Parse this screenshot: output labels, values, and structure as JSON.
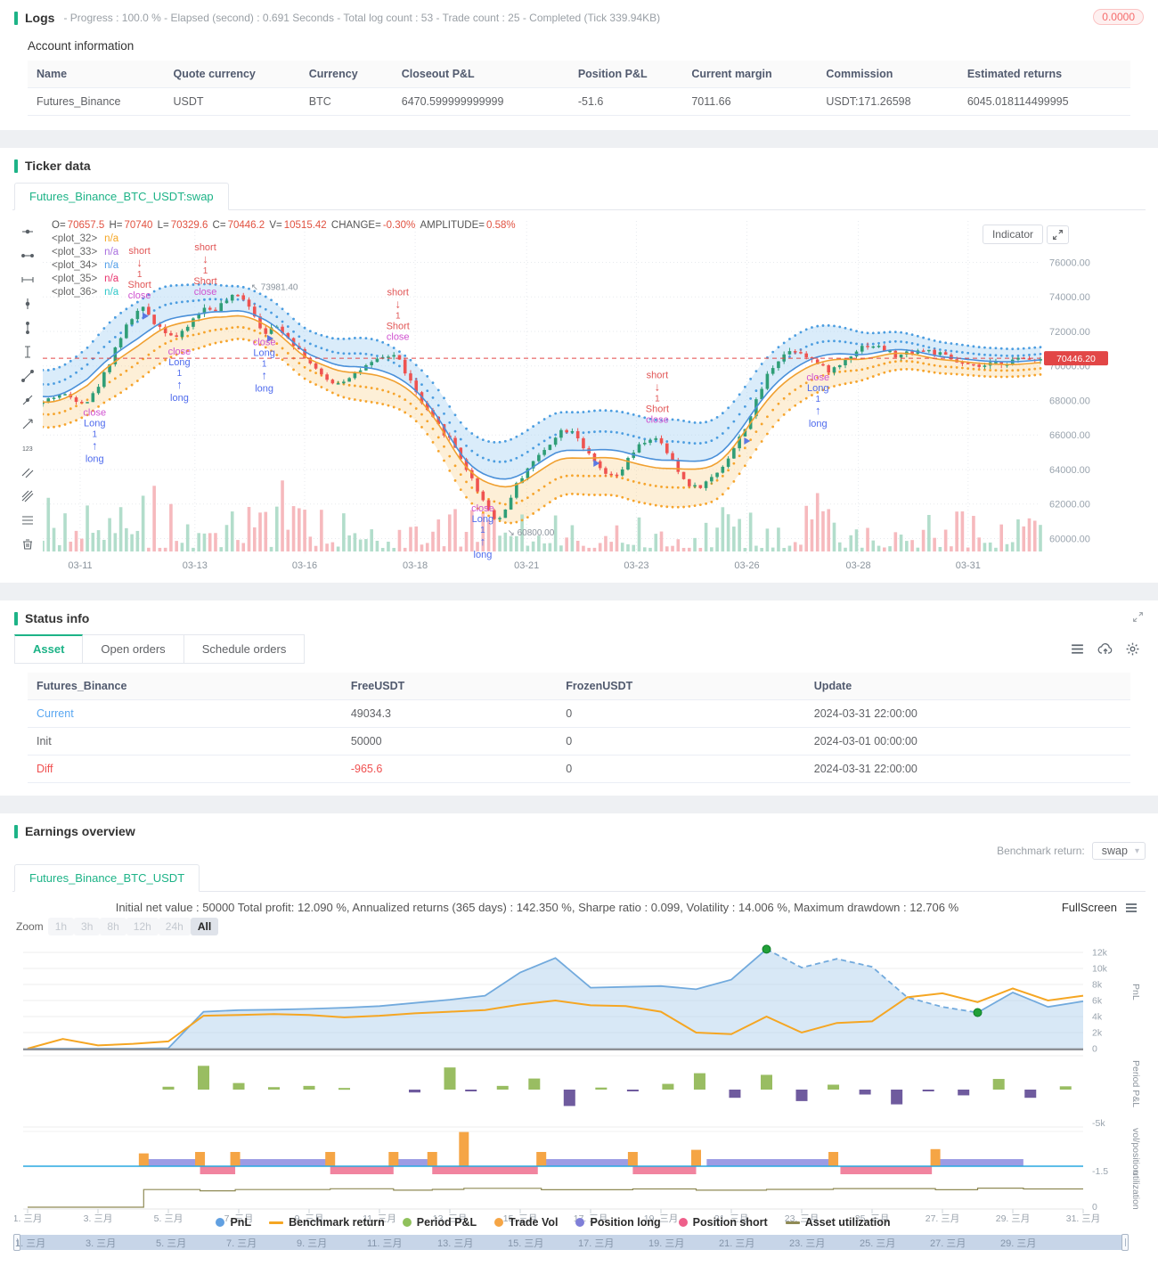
{
  "colors": {
    "accent_green": "#1db387",
    "candle_up": "#2f9e77",
    "candle_down": "#ef5350",
    "band_blue": "#4b9de0",
    "band_orange": "#f6a42c",
    "last_price_red": "#e24646",
    "pnl_blue": "#72aadd",
    "benchmark_orange": "#f5a623",
    "period_green": "#99bd62",
    "period_purple": "#6f5b9e",
    "vol_orange": "#f5a545",
    "long_purple": "#8b8bdf",
    "short_pink": "#ef6f8e",
    "util_olive": "#8f8a55"
  },
  "logs": {
    "title": "Logs",
    "meta": "- Progress : 100.0 % - Elapsed (second) : 0.691 Seconds - Total log count : 53 - Trade count : 25 - Completed (Tick 339.94KB)",
    "badge": "0.0000",
    "account_title": "Account information",
    "headers": [
      "Name",
      "Quote currency",
      "Currency",
      "Closeout P&L",
      "Position P&L",
      "Current margin",
      "Commission",
      "Estimated returns"
    ],
    "row": [
      "Futures_Binance",
      "USDT",
      "BTC",
      "6470.599999999999",
      "-51.6",
      "7011.66",
      "USDT:171.26598",
      "6045.018114499995"
    ]
  },
  "ticker": {
    "title": "Ticker data",
    "tab_label": "Futures_Binance_BTC_USDT:swap",
    "indicator_button": "Indicator",
    "ohlc": [
      [
        "O=",
        "70657.5"
      ],
      [
        "H=",
        "70740"
      ],
      [
        "L=",
        "70329.6"
      ],
      [
        "C=",
        "70446.2"
      ],
      [
        "V=",
        "10515.42"
      ],
      [
        "CHANGE=",
        "-0.30%"
      ],
      [
        "AMPLITUDE=",
        "0.58%"
      ]
    ],
    "plots": [
      {
        "name": "<plot_32>",
        "value": "n/a",
        "color": "#f5a623"
      },
      {
        "name": "<plot_33>",
        "value": "n/a",
        "color": "#a86ede"
      },
      {
        "name": "<plot_34>",
        "value": "n/a",
        "color": "#4f9de8"
      },
      {
        "name": "<plot_35>",
        "value": "n/a",
        "color": "#e8336d"
      },
      {
        "name": "<plot_36>",
        "value": "n/a",
        "color": "#2ec7c9"
      }
    ],
    "toolbar_icons": [
      "horizontal-line-tool-icon",
      "horizontal-segment-tool-icon",
      "horizontal-ray-tool-icon",
      "vertical-line-tool-icon",
      "vertical-segment-tool-icon",
      "vertical-ray-tool-icon",
      "trend-line-tool-icon",
      "ray-tool-icon",
      "arrow-line-tool-icon",
      "price-label-tool-icon",
      "parallel-channel-tool-icon",
      "fib-fan-tool-icon",
      "fib-retracement-tool-icon",
      "delete-drawings-tool-icon"
    ]
  },
  "status": {
    "title": "Status info",
    "tabs": [
      "Asset",
      "Open orders",
      "Schedule orders"
    ],
    "active_tab": "Asset",
    "headers": [
      "Futures_Binance",
      "FreeUSDT",
      "FrozenUSDT",
      "Update"
    ],
    "rows": [
      {
        "label": "Current",
        "free": "49034.3",
        "frozen": "0",
        "update": "2024-03-31 22:00:00"
      },
      {
        "label": "Init",
        "free": "50000",
        "frozen": "0",
        "update": "2024-03-01 00:00:00"
      },
      {
        "label": "Diff",
        "free": "-965.6",
        "frozen": "0",
        "update": "2024-03-31 22:00:00"
      }
    ]
  },
  "earnings": {
    "title": "Earnings overview",
    "tab_label": "Futures_Binance_BTC_USDT",
    "benchmark_label": "Benchmark return:",
    "benchmark_value": "swap",
    "stats": "Initial net value : 50000 Total profit: 12.090 %, Annualized returns (365 days) : 142.350 %, Sharpe ratio : 0.099, Volatility : 14.006 %, Maximum drawdown : 12.706 %",
    "fullscreen_label": "FullScreen",
    "zoom_label": "Zoom",
    "zoom_options": [
      "1h",
      "3h",
      "8h",
      "12h",
      "24h",
      "All"
    ],
    "zoom_active": "All",
    "pnl_ticks": [
      "0",
      "2k",
      "4k",
      "6k",
      "8k",
      "10k",
      "12k"
    ],
    "axis_titles": {
      "pnl": "PnL",
      "period": "Period P&L",
      "volpos": "vol/position",
      "util": "utilization"
    },
    "period_min": "-5k",
    "volpos_min": "-1.5",
    "util_min": "0",
    "x_days": [
      1,
      3,
      5,
      7,
      9,
      11,
      13,
      15,
      17,
      19,
      21,
      23,
      25,
      27,
      29,
      31
    ],
    "x_labels": [
      "1. 三月",
      "3. 三月",
      "5. 三月",
      "7. 三月",
      "9. 三月",
      "11. 三月",
      "13. 三月",
      "15. 三月",
      "17. 三月",
      "19. 三月",
      "21. 三月",
      "23. 三月",
      "25. 三月",
      "27. 三月",
      "29. 三月",
      "31. 三月"
    ],
    "nav_days": [
      1,
      3,
      5,
      7,
      9,
      11,
      13,
      15,
      17,
      19,
      21,
      23,
      25,
      27,
      29
    ],
    "nav_labels": [
      "1. 三月",
      "3. 三月",
      "5. 三月",
      "7. 三月",
      "9. 三月",
      "11. 三月",
      "13. 三月",
      "15. 三月",
      "17. 三月",
      "19. 三月",
      "21. 三月",
      "23. 三月",
      "25. 三月",
      "27. 三月",
      "29. 三月"
    ],
    "legend": [
      {
        "label": "PnL",
        "color": "#61a0e1",
        "shape": "dot"
      },
      {
        "label": "Benchmark return",
        "color": "#f5a623",
        "shape": "line"
      },
      {
        "label": "Period P&L",
        "color": "#90c15c",
        "shape": "dot"
      },
      {
        "label": "Trade Vol",
        "color": "#f5a545",
        "shape": "dot"
      },
      {
        "label": "Position long",
        "color": "#7f7fd8",
        "shape": "dot"
      },
      {
        "label": "Position short",
        "color": "#ee5f8a",
        "shape": "dot"
      },
      {
        "label": "Asset utilization",
        "color": "#8f8a55",
        "shape": "line"
      }
    ]
  },
  "chart_data": [
    {
      "type": "candlestick",
      "title": "Futures_Binance_BTC_USDT:swap",
      "y_ticks": [
        76000,
        74000,
        72000,
        70000,
        68000,
        66000,
        64000,
        62000,
        60000
      ],
      "x_ticks": [
        [
          0.0375,
          "03-11"
        ],
        [
          0.1525,
          "03-13"
        ],
        [
          0.2625,
          "03-16"
        ],
        [
          0.3733,
          "03-18"
        ],
        [
          0.485,
          "03-21"
        ],
        [
          0.595,
          "03-23"
        ],
        [
          0.7058,
          "03-26"
        ],
        [
          0.8175,
          "03-28"
        ],
        [
          0.9275,
          "03-31"
        ]
      ],
      "last_price": 70446.2,
      "last_price_label": "70446.20",
      "high_marker": {
        "f": 0.205,
        "price": 74400,
        "label": "73981.40"
      },
      "low_marker": {
        "f": 0.462,
        "price": 60700,
        "label": "60800.00"
      },
      "path": [
        [
          0,
          67800
        ],
        [
          0.02,
          68400
        ],
        [
          0.035,
          68100
        ],
        [
          0.05,
          67950
        ],
        [
          0.065,
          69500
        ],
        [
          0.08,
          71600
        ],
        [
          0.095,
          73000
        ],
        [
          0.105,
          73400
        ],
        [
          0.115,
          72500
        ],
        [
          0.13,
          71900
        ],
        [
          0.14,
          71600
        ],
        [
          0.155,
          72800
        ],
        [
          0.165,
          73400
        ],
        [
          0.175,
          73200
        ],
        [
          0.19,
          73900
        ],
        [
          0.205,
          74100
        ],
        [
          0.215,
          73000
        ],
        [
          0.225,
          71900
        ],
        [
          0.24,
          72300
        ],
        [
          0.255,
          71300
        ],
        [
          0.27,
          70300
        ],
        [
          0.285,
          69200
        ],
        [
          0.3,
          69000
        ],
        [
          0.315,
          69600
        ],
        [
          0.33,
          70000
        ],
        [
          0.345,
          70500
        ],
        [
          0.357,
          70700
        ],
        [
          0.37,
          69300
        ],
        [
          0.385,
          67600
        ],
        [
          0.4,
          66500
        ],
        [
          0.415,
          65500
        ],
        [
          0.43,
          63800
        ],
        [
          0.443,
          62400
        ],
        [
          0.455,
          61200
        ],
        [
          0.462,
          61000
        ],
        [
          0.475,
          62800
        ],
        [
          0.49,
          64200
        ],
        [
          0.505,
          65000
        ],
        [
          0.52,
          66200
        ],
        [
          0.535,
          66400
        ],
        [
          0.55,
          64800
        ],
        [
          0.565,
          63800
        ],
        [
          0.578,
          63400
        ],
        [
          0.59,
          64600
        ],
        [
          0.605,
          65600
        ],
        [
          0.617,
          65900
        ],
        [
          0.63,
          64900
        ],
        [
          0.645,
          63400
        ],
        [
          0.658,
          62900
        ],
        [
          0.67,
          63300
        ],
        [
          0.685,
          64200
        ],
        [
          0.7,
          65600
        ],
        [
          0.715,
          67400
        ],
        [
          0.73,
          69600
        ],
        [
          0.745,
          70700
        ],
        [
          0.758,
          71000
        ],
        [
          0.77,
          70600
        ],
        [
          0.777,
          70200
        ],
        [
          0.79,
          69700
        ],
        [
          0.8,
          69900
        ],
        [
          0.815,
          70800
        ],
        [
          0.83,
          71300
        ],
        [
          0.845,
          71000
        ],
        [
          0.86,
          70500
        ],
        [
          0.875,
          70900
        ],
        [
          0.89,
          70900
        ],
        [
          0.905,
          70600
        ],
        [
          0.92,
          70200
        ],
        [
          0.935,
          69900
        ],
        [
          0.95,
          70000
        ],
        [
          0.965,
          70200
        ],
        [
          0.98,
          70350
        ],
        [
          1,
          70446
        ]
      ],
      "trades": [
        {
          "f": 0.052,
          "side": "long"
        },
        {
          "f": 0.097,
          "side": "short"
        },
        {
          "f": 0.137,
          "side": "long"
        },
        {
          "f": 0.163,
          "side": "short"
        },
        {
          "f": 0.222,
          "side": "long"
        },
        {
          "f": 0.356,
          "side": "short"
        },
        {
          "f": 0.441,
          "side": "long"
        },
        {
          "f": 0.616,
          "side": "short"
        },
        {
          "f": 0.777,
          "side": "long"
        }
      ],
      "arrow_markers": [
        0.1,
        0.225,
        0.552,
        0.703
      ]
    },
    {
      "type": "multi-panel",
      "days": 31,
      "pnl": [
        0,
        0,
        0,
        0,
        0.05,
        4.6,
        4.8,
        4.85,
        4.95,
        5.1,
        5.3,
        5.7,
        6.1,
        6.6,
        9.5,
        11.3,
        7.6,
        7.7,
        7.8,
        7.4,
        8.6,
        12.4,
        10.1,
        11.2,
        10.2,
        6.4,
        5.2,
        4.5,
        7.0,
        5.2,
        5.9
      ],
      "benchmark": [
        0,
        1.2,
        0.4,
        0.6,
        0.9,
        4.1,
        4.2,
        4.3,
        4.2,
        3.9,
        4.1,
        4.4,
        4.6,
        4.8,
        5.5,
        6.0,
        5.4,
        5.3,
        4.6,
        2.0,
        1.8,
        4.0,
        2.0,
        3.2,
        3.4,
        6.4,
        6.9,
        5.8,
        7.5,
        6.0,
        6.6
      ],
      "pnl_dashed": [
        22,
        28
      ],
      "pnl_markers": [
        {
          "day": 22,
          "value": 12.4
        },
        {
          "day": 28,
          "value": 4.5
        }
      ],
      "period_pnl": [
        [
          5,
          0.35
        ],
        [
          6,
          2.9
        ],
        [
          7,
          0.8
        ],
        [
          8,
          0.3
        ],
        [
          9,
          0.45
        ],
        [
          10,
          0.2
        ],
        [
          12,
          -0.35
        ],
        [
          13,
          2.7
        ],
        [
          13.6,
          -0.2
        ],
        [
          14.5,
          0.45
        ],
        [
          15.4,
          1.35
        ],
        [
          16.4,
          -2.0
        ],
        [
          17.3,
          0.25
        ],
        [
          18.2,
          -0.2
        ],
        [
          19.2,
          0.7
        ],
        [
          20.1,
          2.0
        ],
        [
          21.1,
          -1.0
        ],
        [
          22,
          1.8
        ],
        [
          23,
          -1.4
        ],
        [
          23.9,
          0.6
        ],
        [
          24.8,
          -0.6
        ],
        [
          25.7,
          -1.8
        ],
        [
          26.6,
          -0.15
        ],
        [
          27.6,
          -0.7
        ],
        [
          28.6,
          1.3
        ],
        [
          29.5,
          -1.0
        ],
        [
          30.5,
          0.4
        ]
      ],
      "trade_vol": [
        [
          4.3,
          0.9
        ],
        [
          5.9,
          1
        ],
        [
          6.9,
          1
        ],
        [
          9.6,
          1
        ],
        [
          11.4,
          1
        ],
        [
          12.5,
          1
        ],
        [
          13.4,
          2.4
        ],
        [
          15.6,
          1
        ],
        [
          18.2,
          1
        ],
        [
          20.0,
          1.15
        ],
        [
          23.9,
          1
        ],
        [
          26.8,
          1.2
        ]
      ],
      "long_segments": [
        [
          4.3,
          5.9
        ],
        [
          7.0,
          9.6
        ],
        [
          11.4,
          12.5
        ],
        [
          15.6,
          18.2
        ],
        [
          20.3,
          23.9
        ],
        [
          26.9,
          29.3
        ]
      ],
      "short_segments": [
        [
          5.9,
          6.9
        ],
        [
          9.6,
          11.4
        ],
        [
          12.5,
          15.5
        ],
        [
          18.2,
          20.0
        ],
        [
          24.1,
          26.7
        ]
      ],
      "utilization": {
        "start": 0,
        "steps": [
          [
            4.3,
            0.86
          ],
          [
            5.9,
            0.8
          ],
          [
            6.9,
            0.86
          ],
          [
            9.6,
            0.9
          ],
          [
            11.4,
            0.83
          ],
          [
            12.5,
            0.87
          ],
          [
            13.4,
            0.92
          ],
          [
            15.6,
            0.85
          ],
          [
            18.2,
            0.89
          ],
          [
            20.0,
            0.83
          ],
          [
            22.0,
            0.87
          ],
          [
            23.9,
            0.91
          ],
          [
            26.8,
            0.85
          ],
          [
            28.0,
            0.93
          ],
          [
            29.3,
            0.89
          ]
        ]
      }
    }
  ]
}
